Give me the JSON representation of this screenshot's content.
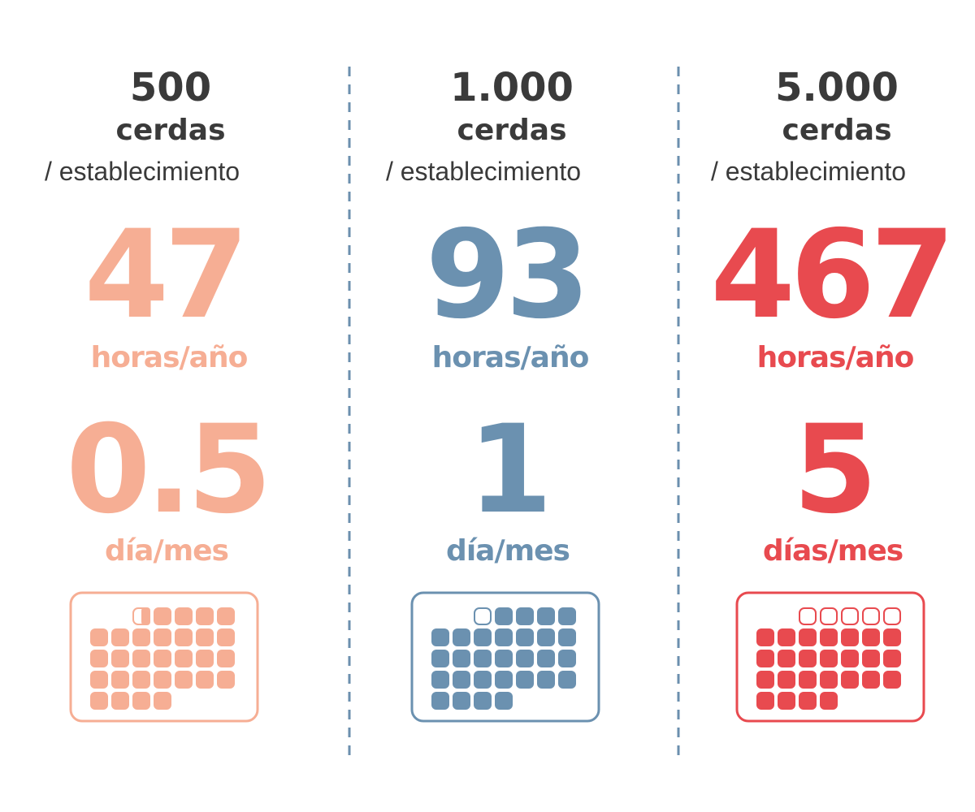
{
  "columns": [
    {
      "count": "500",
      "unit": "cerdas",
      "per": "/ establecimiento",
      "hours": "47",
      "hours_unit": "horas/año",
      "days": "0.5",
      "days_unit": "día/mes",
      "color": "#f6ae94"
    },
    {
      "count": "1.000",
      "unit": "cerdas",
      "per": "/ establecimiento",
      "hours": "93",
      "hours_unit": "horas/año",
      "days": "1",
      "days_unit": "día/mes",
      "color": "#6b91b0"
    },
    {
      "count": "5.000",
      "unit": "cerdas",
      "per": "/ establecimiento",
      "hours": "467",
      "hours_unit": "horas/año",
      "days": "5",
      "days_unit": "días/mes",
      "color": "#e84a4f"
    }
  ]
}
